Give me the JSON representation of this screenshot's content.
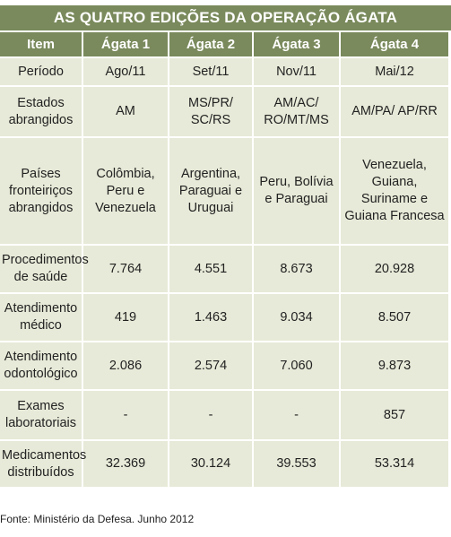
{
  "title": "AS QUATRO EDIÇÕES DA OPERAÇÃO ÁGATA",
  "headers": [
    "Item",
    "Ágata 1",
    "Ágata 2",
    "Ágata 3",
    "Ágata 4"
  ],
  "rows": [
    {
      "label": "Período",
      "values": [
        "Ago/11",
        "Set/11",
        "Nov/11",
        "Mai/12"
      ]
    },
    {
      "label": "Estados abrangidos",
      "values": [
        "AM",
        "MS/PR/ SC/RS",
        "AM/AC/ RO/MT/MS",
        "AM/PA/ AP/RR"
      ]
    },
    {
      "label": "Países fronteiriços abrangidos",
      "values": [
        "Colômbia, Peru e Venezuela",
        "Argentina, Paraguai e Uruguai",
        "Peru, Bolívia e Paraguai",
        "Venezuela, Guiana, Suriname e Guiana Francesa"
      ]
    },
    {
      "label": "Procedimentos de saúde",
      "values": [
        "7.764",
        "4.551",
        "8.673",
        "20.928"
      ]
    },
    {
      "label": "Atendimento médico",
      "values": [
        "419",
        "1.463",
        "9.034",
        "8.507"
      ]
    },
    {
      "label": "Atendimento odontológico",
      "values": [
        "2.086",
        "2.574",
        "7.060",
        "9.873"
      ]
    },
    {
      "label": "Exames laboratoriais",
      "values": [
        "-",
        "-",
        "-",
        "857"
      ]
    },
    {
      "label": "Medicamentos distribuídos",
      "values": [
        "32.369",
        "30.124",
        "39.553",
        "53.314"
      ]
    }
  ],
  "source": "Fonte: Ministério da Defesa. Junho 2012",
  "colors": {
    "header_bg": "#7a8a5c",
    "cell_bg": "#e7ead8",
    "header_text": "#ffffff"
  }
}
